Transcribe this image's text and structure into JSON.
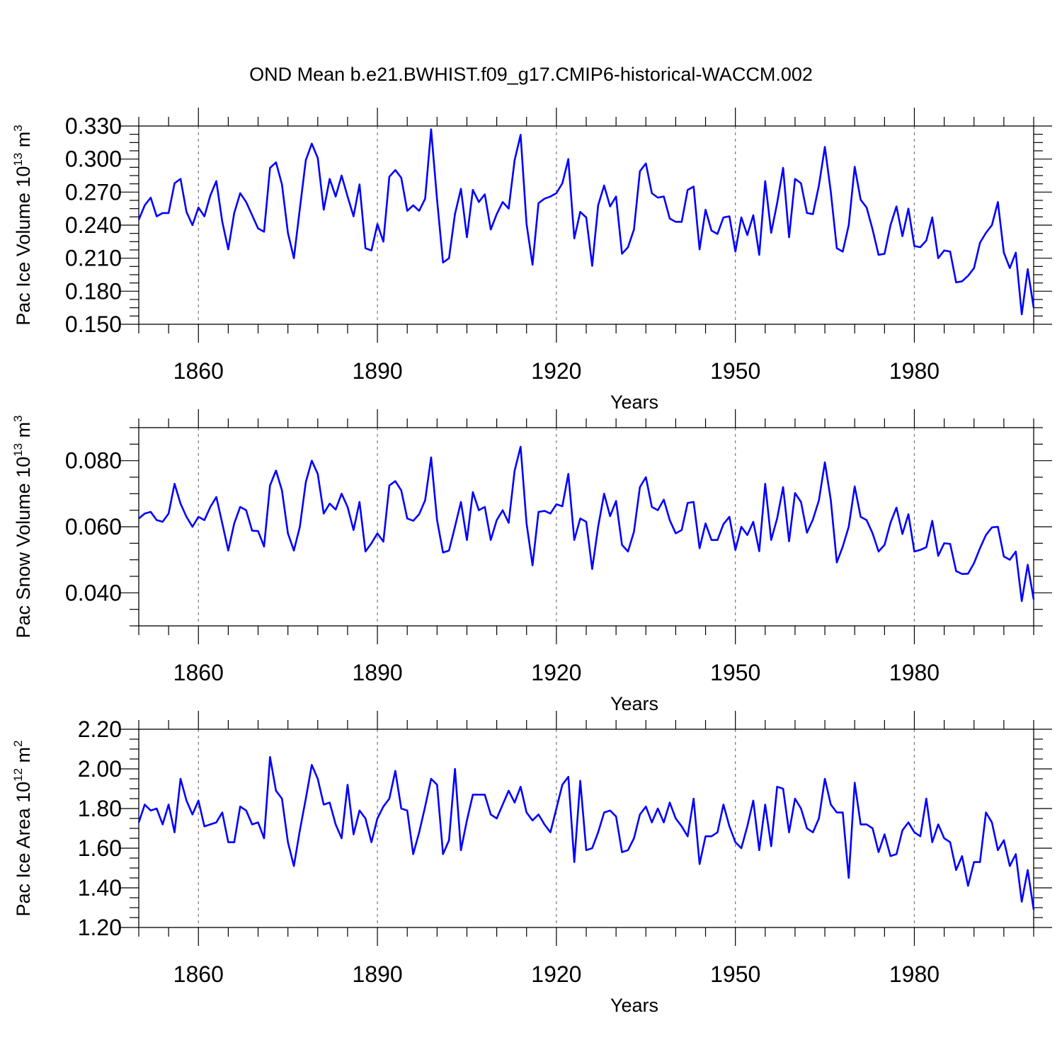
{
  "title": "OND Mean b.e21.BWHIST.f09_g17.CMIP6-historical-WACCM.002",
  "chart_data": [
    {
      "type": "line",
      "ylabel": {
        "base": "Pac Ice Volume 10",
        "exp": "13",
        "unit": " m",
        "unit_exp": "3"
      },
      "xlabel": "Years",
      "xlim": [
        1850,
        2000
      ],
      "ylim": [
        0.15,
        0.33
      ],
      "xticks": [
        1860,
        1890,
        1920,
        1950,
        1980
      ],
      "xtick_labels": [
        "1860",
        "1890",
        "1920",
        "1950",
        "1980"
      ],
      "yticks": [
        0.15,
        0.18,
        0.21,
        0.24,
        0.27,
        0.3,
        0.33
      ],
      "ytick_labels": [
        "0.150",
        "0.180",
        "0.210",
        "0.240",
        "0.270",
        "0.300",
        "0.330"
      ],
      "grid": "vertical dashed at major x ticks",
      "series": [
        {
          "name": "Pac Ice Volume",
          "color": "#0000ff",
          "x_start": 1850,
          "x_step": 1,
          "values": [
            0.245,
            0.258,
            0.265,
            0.248,
            0.251,
            0.251,
            0.278,
            0.282,
            0.252,
            0.24,
            0.256,
            0.248,
            0.267,
            0.28,
            0.243,
            0.218,
            0.251,
            0.269,
            0.261,
            0.249,
            0.237,
            0.234,
            0.292,
            0.297,
            0.277,
            0.233,
            0.21,
            0.255,
            0.299,
            0.314,
            0.301,
            0.254,
            0.282,
            0.266,
            0.285,
            0.266,
            0.248,
            0.277,
            0.219,
            0.217,
            0.241,
            0.225,
            0.284,
            0.29,
            0.283,
            0.253,
            0.258,
            0.253,
            0.264,
            0.327,
            0.263,
            0.206,
            0.21,
            0.25,
            0.273,
            0.229,
            0.272,
            0.261,
            0.268,
            0.236,
            0.25,
            0.261,
            0.255,
            0.299,
            0.322,
            0.241,
            0.204,
            0.26,
            0.264,
            0.266,
            0.269,
            0.278,
            0.3,
            0.228,
            0.252,
            0.247,
            0.203,
            0.258,
            0.276,
            0.257,
            0.266,
            0.214,
            0.22,
            0.236,
            0.289,
            0.296,
            0.269,
            0.265,
            0.266,
            0.246,
            0.243,
            0.243,
            0.272,
            0.275,
            0.218,
            0.254,
            0.235,
            0.232,
            0.247,
            0.248,
            0.216,
            0.247,
            0.231,
            0.249,
            0.213,
            0.28,
            0.233,
            0.26,
            0.292,
            0.229,
            0.282,
            0.278,
            0.251,
            0.25,
            0.276,
            0.311,
            0.27,
            0.219,
            0.216,
            0.24,
            0.293,
            0.263,
            0.256,
            0.236,
            0.213,
            0.214,
            0.24,
            0.257,
            0.23,
            0.255,
            0.221,
            0.22,
            0.226,
            0.247,
            0.21,
            0.217,
            0.216,
            0.188,
            0.189,
            0.194,
            0.201,
            0.224,
            0.233,
            0.24,
            0.261,
            0.215,
            0.201,
            0.215,
            0.159,
            0.2,
            0.165
          ]
        }
      ]
    },
    {
      "type": "line",
      "ylabel": {
        "base": "Pac Snow Volume 10",
        "exp": "13",
        "unit": " m",
        "unit_exp": "3"
      },
      "xlabel": "Years",
      "xlim": [
        1850,
        2000
      ],
      "ylim": [
        0.03,
        0.09
      ],
      "xticks": [
        1860,
        1890,
        1920,
        1950,
        1980
      ],
      "xtick_labels": [
        "1860",
        "1890",
        "1920",
        "1950",
        "1980"
      ],
      "yticks": [
        0.04,
        0.06,
        0.08
      ],
      "ytick_labels": [
        "0.040",
        "0.060",
        "0.080"
      ],
      "grid": "vertical dashed at major x ticks",
      "series": [
        {
          "name": "Pac Snow Volume",
          "color": "#0000ff",
          "x_start": 1850,
          "x_step": 1,
          "values": [
            0.0625,
            0.064,
            0.0645,
            0.062,
            0.0615,
            0.064,
            0.073,
            0.067,
            0.063,
            0.06,
            0.063,
            0.062,
            0.066,
            0.069,
            0.061,
            0.0528,
            0.061,
            0.066,
            0.065,
            0.0588,
            0.0587,
            0.054,
            0.0725,
            0.077,
            0.071,
            0.058,
            0.0528,
            0.06,
            0.0735,
            0.08,
            0.076,
            0.064,
            0.067,
            0.0652,
            0.07,
            0.066,
            0.059,
            0.0675,
            0.0525,
            0.055,
            0.058,
            0.0555,
            0.0725,
            0.0738,
            0.071,
            0.0625,
            0.0618,
            0.0638,
            0.068,
            0.081,
            0.062,
            0.0522,
            0.0528,
            0.06,
            0.0675,
            0.056,
            0.0705,
            0.065,
            0.066,
            0.056,
            0.062,
            0.065,
            0.0612,
            0.077,
            0.0842,
            0.061,
            0.0483,
            0.0645,
            0.0648,
            0.064,
            0.0668,
            0.0662,
            0.076,
            0.056,
            0.0625,
            0.0615,
            0.0472,
            0.06,
            0.07,
            0.0632,
            0.0678,
            0.0545,
            0.0525,
            0.0585,
            0.072,
            0.075,
            0.066,
            0.065,
            0.0682,
            0.062,
            0.058,
            0.059,
            0.0672,
            0.0675,
            0.0535,
            0.061,
            0.056,
            0.056,
            0.0608,
            0.063,
            0.053,
            0.06,
            0.0575,
            0.0615,
            0.0526,
            0.073,
            0.056,
            0.0625,
            0.072,
            0.0556,
            0.0702,
            0.0675,
            0.0582,
            0.0622,
            0.068,
            0.0795,
            0.068,
            0.0492,
            0.054,
            0.06,
            0.0722,
            0.063,
            0.062,
            0.058,
            0.0525,
            0.0545,
            0.0612,
            0.0658,
            0.0578,
            0.0638,
            0.0525,
            0.053,
            0.0538,
            0.0618,
            0.0512,
            0.055,
            0.0548,
            0.0466,
            0.0457,
            0.0458,
            0.049,
            0.0535,
            0.0575,
            0.0598,
            0.06,
            0.051,
            0.05,
            0.0525,
            0.0375,
            0.0485,
            0.038
          ]
        }
      ]
    },
    {
      "type": "line",
      "ylabel": {
        "base": "Pac Ice Area 10",
        "exp": "12",
        "unit": " m",
        "unit_exp": "2"
      },
      "xlabel": "Years",
      "xlim": [
        1850,
        2000
      ],
      "ylim": [
        1.2,
        2.2
      ],
      "xticks": [
        1860,
        1890,
        1920,
        1950,
        1980
      ],
      "xtick_labels": [
        "1860",
        "1890",
        "1920",
        "1950",
        "1980"
      ],
      "yticks": [
        1.2,
        1.4,
        1.6,
        1.8,
        2.0,
        2.2
      ],
      "ytick_labels": [
        "1.20",
        "1.40",
        "1.60",
        "1.80",
        "2.00",
        "2.20"
      ],
      "grid": "vertical dashed at major x ticks",
      "series": [
        {
          "name": "Pac Ice Area",
          "color": "#0000ff",
          "x_start": 1850,
          "x_step": 1,
          "values": [
            1.73,
            1.82,
            1.79,
            1.8,
            1.72,
            1.82,
            1.68,
            1.95,
            1.84,
            1.77,
            1.84,
            1.71,
            1.72,
            1.73,
            1.78,
            1.63,
            1.63,
            1.81,
            1.79,
            1.72,
            1.73,
            1.65,
            2.06,
            1.89,
            1.85,
            1.63,
            1.51,
            1.69,
            1.85,
            2.02,
            1.95,
            1.82,
            1.83,
            1.72,
            1.65,
            1.92,
            1.67,
            1.79,
            1.75,
            1.63,
            1.75,
            1.81,
            1.85,
            1.99,
            1.8,
            1.79,
            1.57,
            1.68,
            1.81,
            1.95,
            1.92,
            1.57,
            1.64,
            2.0,
            1.59,
            1.74,
            1.87,
            1.87,
            1.87,
            1.77,
            1.75,
            1.82,
            1.89,
            1.83,
            1.91,
            1.78,
            1.74,
            1.77,
            1.72,
            1.68,
            1.8,
            1.92,
            1.96,
            1.53,
            1.94,
            1.59,
            1.6,
            1.68,
            1.78,
            1.79,
            1.76,
            1.58,
            1.59,
            1.65,
            1.77,
            1.81,
            1.73,
            1.8,
            1.73,
            1.83,
            1.75,
            1.71,
            1.66,
            1.85,
            1.52,
            1.66,
            1.66,
            1.68,
            1.82,
            1.71,
            1.63,
            1.6,
            1.71,
            1.84,
            1.59,
            1.82,
            1.61,
            1.91,
            1.9,
            1.68,
            1.85,
            1.8,
            1.7,
            1.68,
            1.75,
            1.95,
            1.82,
            1.78,
            1.78,
            1.45,
            1.93,
            1.72,
            1.72,
            1.7,
            1.58,
            1.67,
            1.56,
            1.57,
            1.69,
            1.73,
            1.68,
            1.66,
            1.85,
            1.63,
            1.72,
            1.65,
            1.63,
            1.49,
            1.56,
            1.41,
            1.53,
            1.53,
            1.78,
            1.73,
            1.59,
            1.64,
            1.51,
            1.57,
            1.33,
            1.49,
            1.29
          ]
        }
      ]
    }
  ]
}
